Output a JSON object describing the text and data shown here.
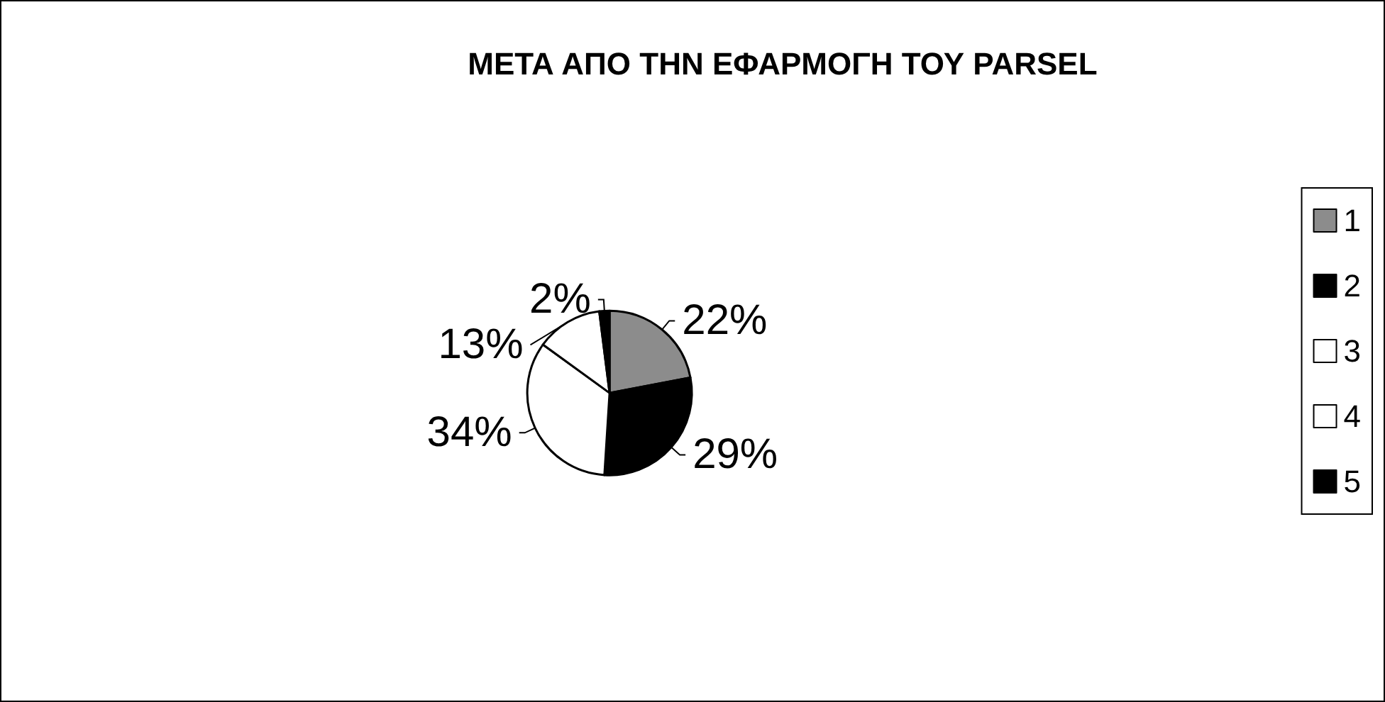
{
  "chart_data": {
    "type": "pie",
    "title": "ΜΕΤΑ ΑΠΟ ΤΗΝ ΕΦΑΡΜΟΓΗ ΤΟΥ PARSEL",
    "categories": [
      "1",
      "2",
      "3",
      "4",
      "5"
    ],
    "values": [
      22,
      29,
      34,
      13,
      2
    ],
    "colors": [
      "#8c8c8c",
      "#000000",
      "#ffffff",
      "#ffffff",
      "#000000"
    ],
    "value_labels": [
      "22%",
      "29%",
      "34%",
      "13%",
      "2%"
    ],
    "legend": "right"
  }
}
